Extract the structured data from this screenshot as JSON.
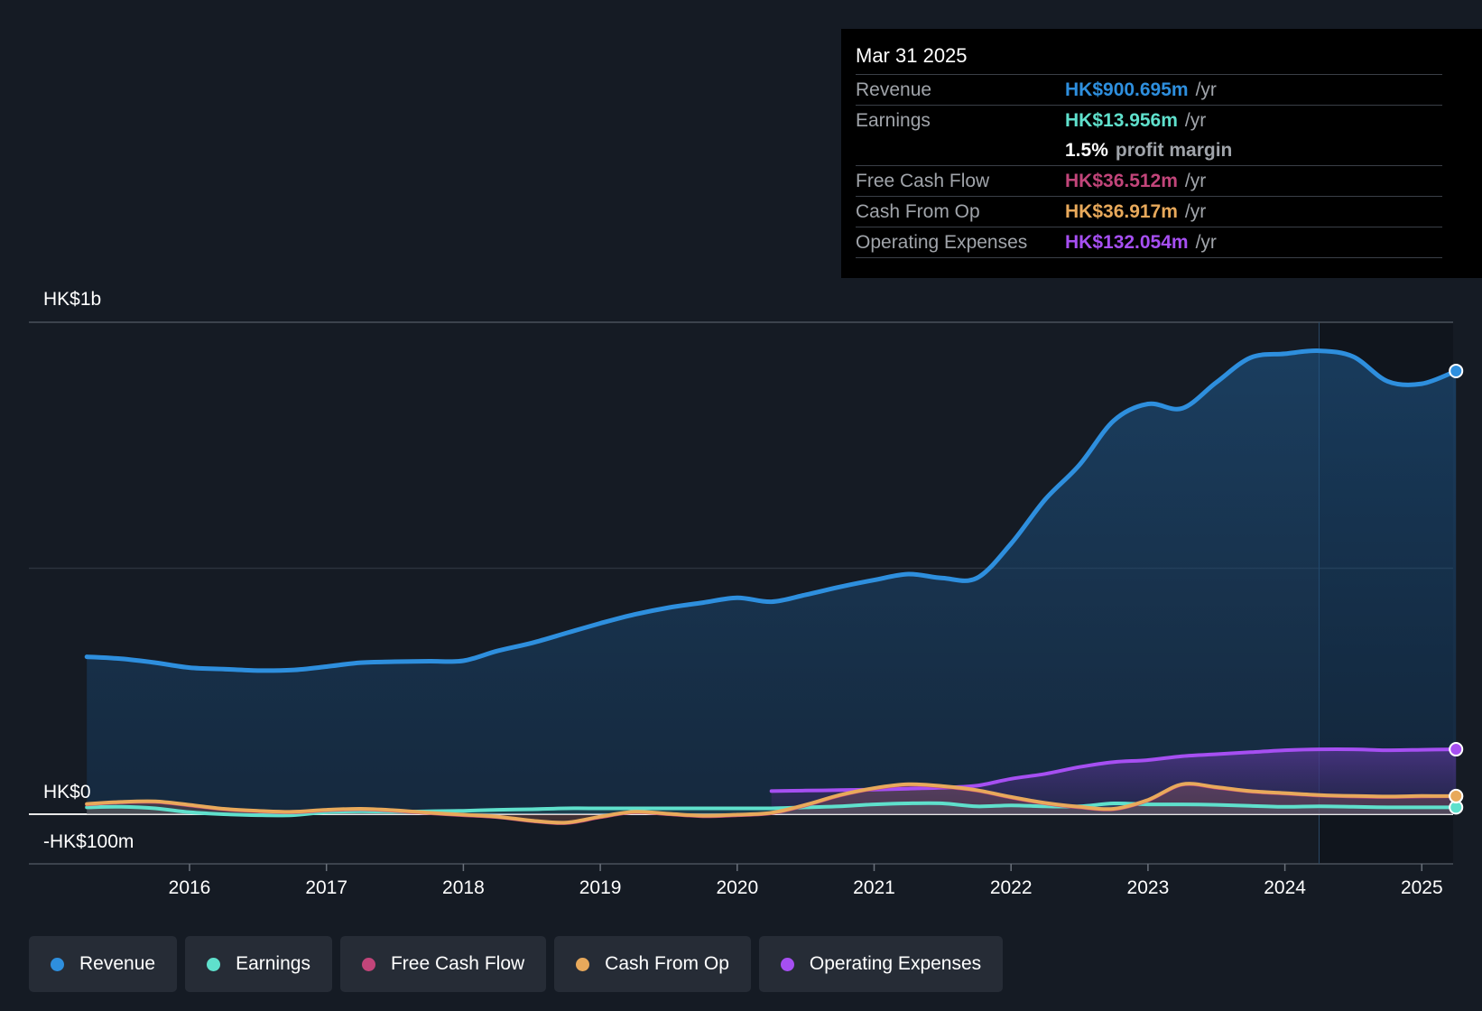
{
  "tooltip": {
    "date": "Mar 31 2025",
    "revenue_label": "Revenue",
    "revenue_value": "HK$900.695m",
    "earnings_label": "Earnings",
    "earnings_value": "HK$13.956m",
    "margin_value": "1.5%",
    "margin_label": "profit margin",
    "fcf_label": "Free Cash Flow",
    "fcf_value": "HK$36.512m",
    "cfo_label": "Cash From Op",
    "cfo_value": "HK$36.917m",
    "opex_label": "Operating Expenses",
    "opex_value": "HK$132.054m",
    "unit": "/yr"
  },
  "colors": {
    "revenue": "#2e8fde",
    "earnings": "#5fe0cc",
    "fcf": "#c2457a",
    "cfo": "#e8a95b",
    "opex": "#a64ff2"
  },
  "legend": [
    {
      "label": "Revenue",
      "color": "#2e8fde"
    },
    {
      "label": "Earnings",
      "color": "#5fe0cc"
    },
    {
      "label": "Free Cash Flow",
      "color": "#c2457a"
    },
    {
      "label": "Cash From Op",
      "color": "#e8a95b"
    },
    {
      "label": "Operating Expenses",
      "color": "#a64ff2"
    }
  ],
  "chart_data": {
    "type": "line",
    "title": "",
    "y_axis_labels": [
      "HK$1b",
      "HK$0",
      "-HK$100m"
    ],
    "ylim": [
      -100,
      1000
    ],
    "xlim": [
      2015.0,
      2025.25
    ],
    "x_ticks": [
      "2016",
      "2017",
      "2018",
      "2019",
      "2020",
      "2021",
      "2022",
      "2023",
      "2024",
      "2025"
    ],
    "x_tick_values": [
      2016,
      2017,
      2018,
      2019,
      2020,
      2021,
      2022,
      2023,
      2024,
      2025
    ],
    "forecast_shade_from": 2024.25,
    "series": [
      {
        "name": "Revenue",
        "key": "revenue",
        "x": [
          2015.25,
          2015.5,
          2015.75,
          2016.0,
          2016.25,
          2016.5,
          2016.75,
          2017.0,
          2017.25,
          2017.5,
          2017.75,
          2018.0,
          2018.25,
          2018.5,
          2018.75,
          2019.0,
          2019.25,
          2019.5,
          2019.75,
          2020.0,
          2020.25,
          2020.5,
          2020.75,
          2021.0,
          2021.25,
          2021.5,
          2021.75,
          2022.0,
          2022.25,
          2022.5,
          2022.75,
          2023.0,
          2023.25,
          2023.5,
          2023.75,
          2024.0,
          2024.25,
          2024.5,
          2024.75,
          2025.0,
          2025.25
        ],
        "values": [
          320,
          316,
          308,
          298,
          295,
          292,
          293,
          300,
          308,
          310,
          311,
          312,
          332,
          348,
          368,
          388,
          406,
          420,
          430,
          440,
          432,
          446,
          462,
          476,
          488,
          480,
          480,
          550,
          640,
          710,
          800,
          834,
          825,
          878,
          928,
          936,
          942,
          930,
          880,
          875,
          901
        ]
      },
      {
        "name": "Earnings",
        "key": "earnings",
        "x": [
          2015.25,
          2015.5,
          2015.75,
          2016.0,
          2016.25,
          2016.5,
          2016.75,
          2017.0,
          2017.25,
          2017.5,
          2017.75,
          2018.0,
          2018.25,
          2018.5,
          2018.75,
          2019.0,
          2019.25,
          2019.5,
          2019.75,
          2020.0,
          2020.25,
          2020.5,
          2020.75,
          2021.0,
          2021.25,
          2021.5,
          2021.75,
          2022.0,
          2022.25,
          2022.5,
          2022.75,
          2023.0,
          2023.25,
          2023.5,
          2023.75,
          2024.0,
          2024.25,
          2024.5,
          2024.75,
          2025.0,
          2025.25
        ],
        "values": [
          14,
          15,
          12,
          4,
          0,
          -2,
          -2,
          4,
          6,
          5,
          6,
          7,
          9,
          10,
          12,
          12,
          12,
          12,
          12,
          12,
          12,
          14,
          16,
          20,
          22,
          22,
          16,
          18,
          16,
          16,
          22,
          20,
          20,
          19,
          17,
          15,
          16,
          15,
          14,
          14,
          14
        ]
      },
      {
        "name": "Free Cash Flow",
        "key": "fcf",
        "x": [
          2015.25,
          2015.5,
          2015.75,
          2016.0,
          2016.25,
          2016.5,
          2016.75,
          2017.0,
          2017.25,
          2017.5,
          2017.75,
          2018.0,
          2018.25,
          2018.5,
          2018.75,
          2019.0,
          2019.25,
          2019.5,
          2019.75,
          2020.0,
          2020.25,
          2020.5,
          2020.75,
          2021.0,
          2021.25,
          2021.5,
          2021.75,
          2022.0,
          2022.25,
          2022.5,
          2022.75,
          2023.0,
          2023.25,
          2023.5,
          2023.75,
          2024.0,
          2024.25,
          2024.5,
          2024.75,
          2025.0,
          2025.25
        ],
        "values": [
          20,
          24,
          25,
          18,
          10,
          6,
          4,
          8,
          10,
          7,
          2,
          -2,
          -6,
          -14,
          -18,
          -6,
          4,
          0,
          -4,
          -2,
          2,
          18,
          38,
          52,
          60,
          56,
          48,
          34,
          22,
          14,
          10,
          28,
          60,
          54,
          46,
          42,
          38,
          36,
          35,
          36,
          36.5
        ]
      },
      {
        "name": "Cash From Op",
        "key": "cfo",
        "x": [
          2015.25,
          2015.5,
          2015.75,
          2016.0,
          2016.25,
          2016.5,
          2016.75,
          2017.0,
          2017.25,
          2017.5,
          2017.75,
          2018.0,
          2018.25,
          2018.5,
          2018.75,
          2019.0,
          2019.25,
          2019.5,
          2019.75,
          2020.0,
          2020.25,
          2020.5,
          2020.75,
          2021.0,
          2021.25,
          2021.5,
          2021.75,
          2022.0,
          2022.25,
          2022.5,
          2022.75,
          2023.0,
          2023.25,
          2023.5,
          2023.75,
          2024.0,
          2024.25,
          2024.5,
          2024.75,
          2025.0,
          2025.25
        ],
        "values": [
          21,
          25,
          26,
          19,
          11,
          7,
          5,
          9,
          11,
          8,
          3,
          -1,
          -5,
          -13,
          -17,
          -5,
          5,
          1,
          -3,
          -1,
          3,
          19,
          39,
          53,
          61,
          57,
          49,
          35,
          23,
          15,
          11,
          29,
          61,
          55,
          47,
          43,
          39,
          37,
          36,
          37,
          36.9
        ]
      },
      {
        "name": "Operating Expenses",
        "key": "opex",
        "x": [
          2020.25,
          2020.5,
          2020.75,
          2021.0,
          2021.25,
          2021.5,
          2021.75,
          2022.0,
          2022.25,
          2022.5,
          2022.75,
          2023.0,
          2023.25,
          2023.5,
          2023.75,
          2024.0,
          2024.25,
          2024.5,
          2024.75,
          2025.0,
          2025.25
        ],
        "values": [
          47,
          48,
          49,
          50,
          52,
          54,
          58,
          72,
          82,
          96,
          106,
          110,
          118,
          122,
          126,
          130,
          132,
          132,
          130,
          131,
          132
        ]
      }
    ]
  }
}
